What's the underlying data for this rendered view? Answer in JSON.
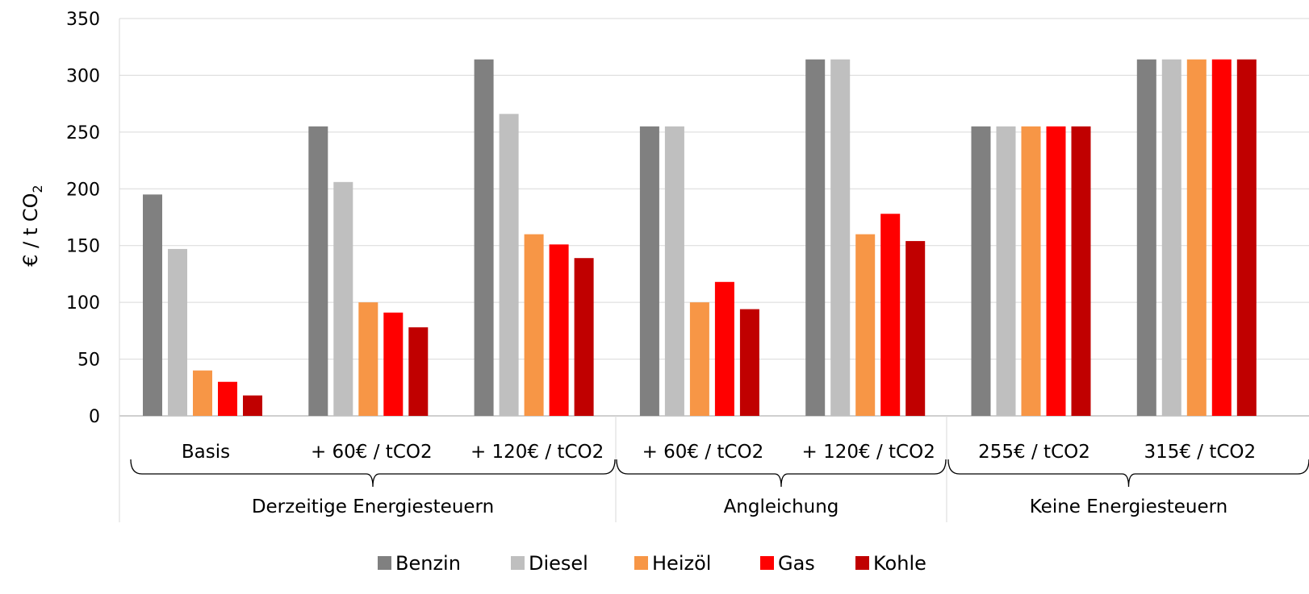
{
  "chart_data": {
    "type": "bar",
    "ylabel": "€ / t CO",
    "ylabel_sub": "2",
    "ylim": [
      0,
      350
    ],
    "yticks": [
      0,
      50,
      100,
      150,
      200,
      250,
      300,
      350
    ],
    "grid": true,
    "legend_position": "bottom",
    "categories": [
      "Basis",
      "+ 60€ / tCO2",
      "+ 120€ / tCO2",
      "+ 60€ / tCO2",
      "+ 120€ / tCO2",
      "255€ / tCO2",
      "315€ / tCO2"
    ],
    "groups": [
      {
        "label": "Derzeitige Energiesteuern",
        "categories": [
          0,
          1,
          2
        ]
      },
      {
        "label": "Angleichung",
        "categories": [
          3,
          4
        ]
      },
      {
        "label": "Keine Energiesteuern",
        "categories": [
          5,
          6
        ]
      }
    ],
    "series": [
      {
        "name": "Benzin",
        "color": "#808080",
        "values": [
          195,
          255,
          314,
          255,
          314,
          255,
          314
        ]
      },
      {
        "name": "Diesel",
        "color": "#BFBFBF",
        "values": [
          147,
          206,
          266,
          255,
          314,
          255,
          314
        ]
      },
      {
        "name": "Heizöl",
        "color": "#F79646",
        "values": [
          40,
          100,
          160,
          100,
          160,
          255,
          314
        ]
      },
      {
        "name": "Gas",
        "color": "#FF0000",
        "values": [
          30,
          91,
          151,
          118,
          178,
          255,
          314
        ]
      },
      {
        "name": "Kohle",
        "color": "#C00000",
        "values": [
          18,
          78,
          139,
          94,
          154,
          255,
          314
        ]
      }
    ]
  }
}
